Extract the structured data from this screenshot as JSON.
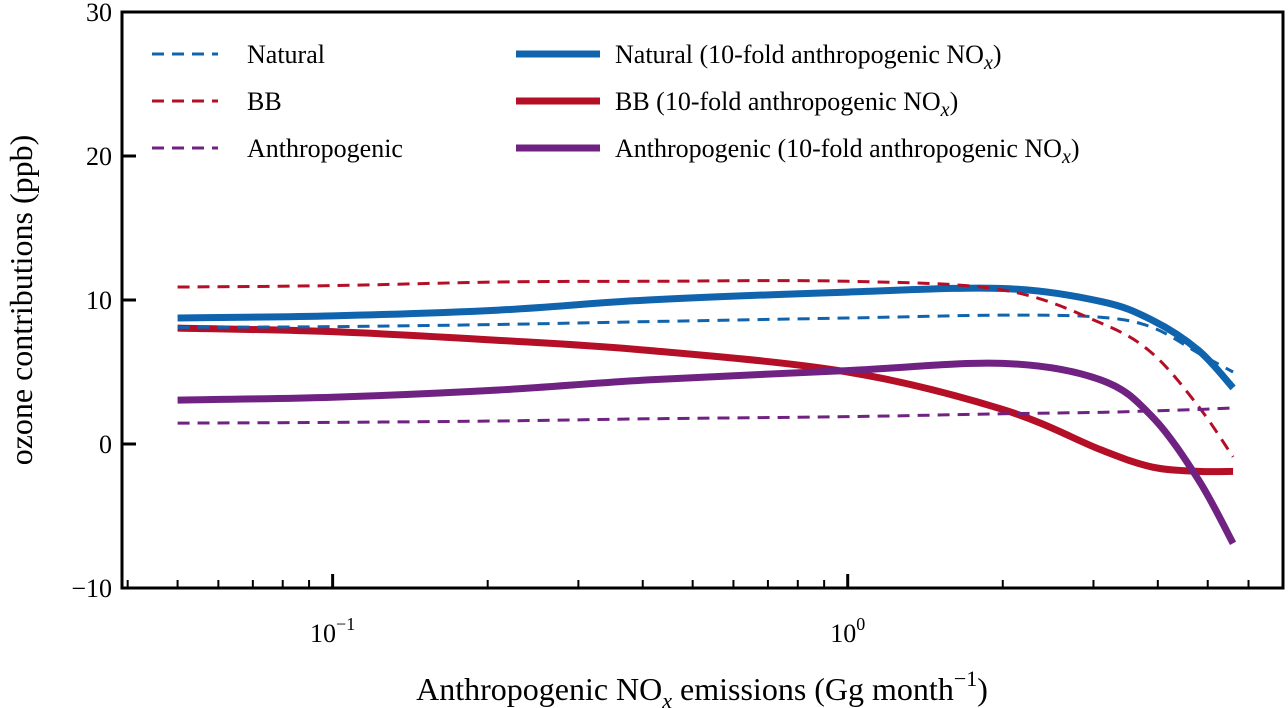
{
  "chart_data": {
    "type": "line",
    "xscale": "log",
    "xlabel": "Anthropogenic NO",
    "xlabel_sub": "x",
    "xlabel_rest": " emissions (Gg month",
    "xlabel_sup": "−1",
    "xlabel_end": ")",
    "ylabel": "ozone contributions (ppb)",
    "xlim": [
      0.039,
      7.0
    ],
    "ylim": [
      -10,
      30
    ],
    "yticks": [
      -10,
      0,
      10,
      20,
      30
    ],
    "ytick_labels": [
      "−10",
      "0",
      "10",
      "20",
      "30"
    ],
    "xticks": [
      {
        "value": 0.1,
        "base": "10",
        "exp": "−1"
      },
      {
        "value": 1,
        "base": "10",
        "exp": "0"
      }
    ],
    "grid": false,
    "legend_placement": "top",
    "x": [
      0.05,
      0.1,
      0.21,
      0.41,
      1.0,
      2.0,
      3.1,
      3.9,
      4.8,
      5.6
    ],
    "series": [
      {
        "name": "Natural",
        "style": "dashed",
        "color": "#1064ad",
        "values": [
          8.1,
          8.15,
          8.3,
          8.5,
          8.75,
          8.95,
          8.8,
          8.1,
          6.3,
          5.0
        ]
      },
      {
        "name": "BB",
        "style": "dashed",
        "color": "#b40f26",
        "values": [
          10.9,
          11.0,
          11.25,
          11.3,
          11.3,
          10.7,
          8.4,
          6.3,
          2.6,
          -0.9
        ]
      },
      {
        "name": "Anthropogenic",
        "style": "dashed",
        "color": "#6f2281",
        "values": [
          1.45,
          1.5,
          1.6,
          1.75,
          1.9,
          2.1,
          2.2,
          2.3,
          2.4,
          2.5
        ]
      },
      {
        "name": "Natural (10-fold anthropogenic NO",
        "sub": "x",
        "close": ")",
        "style": "solid",
        "color": "#1064ad",
        "values": [
          8.75,
          8.9,
          9.3,
          10.0,
          10.55,
          10.8,
          9.9,
          8.6,
          6.5,
          3.9
        ]
      },
      {
        "name": "BB (10-fold anthropogenic NO",
        "sub": "x",
        "close": ")",
        "style": "solid",
        "color": "#b40f26",
        "values": [
          8.05,
          7.8,
          7.2,
          6.5,
          5.0,
          2.4,
          -0.4,
          -1.6,
          -1.9,
          -1.9
        ]
      },
      {
        "name": "Anthropogenic (10-fold anthropogenic NO",
        "sub": "x",
        "close": ")",
        "style": "solid",
        "color": "#6f2281",
        "values": [
          3.05,
          3.25,
          3.75,
          4.45,
          5.1,
          5.6,
          4.45,
          1.9,
          -2.5,
          -6.9
        ]
      }
    ]
  }
}
